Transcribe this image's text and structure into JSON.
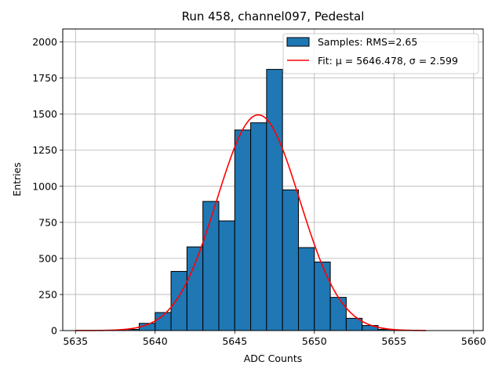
{
  "chart_data": {
    "type": "bar",
    "title": "Run 458, channel097, Pedestal",
    "xlabel": "ADC Counts",
    "ylabel": "Entries",
    "xlim": [
      5634.2,
      5660.6
    ],
    "ylim": [
      0,
      2090
    ],
    "xticks": [
      5635,
      5640,
      5645,
      5650,
      5655,
      5660
    ],
    "yticks": [
      0,
      250,
      500,
      750,
      1000,
      1250,
      1500,
      1750,
      2000
    ],
    "grid": true,
    "legend_position": "top-right",
    "bin_edges": [
      5638,
      5639,
      5640,
      5641,
      5642,
      5643,
      5644,
      5645,
      5646,
      5647,
      5648,
      5649,
      5650,
      5651,
      5652,
      5653,
      5654,
      5655
    ],
    "series": [
      {
        "name": "Samples: RMS=2.65",
        "kind": "histogram",
        "color": "#1f77b4",
        "edgecolor": "#000000",
        "values": [
          8,
          50,
          125,
          410,
          580,
          895,
          760,
          1390,
          1440,
          1810,
          975,
          575,
          475,
          230,
          85,
          35,
          8
        ]
      },
      {
        "name": "Fit: μ = 5646.478, σ = 2.599",
        "kind": "gaussian-fit",
        "color": "#ff0000",
        "mu": 5646.478,
        "sigma": 2.599,
        "amplitude": 1495,
        "x_range": [
          5635,
          5657
        ]
      }
    ]
  }
}
